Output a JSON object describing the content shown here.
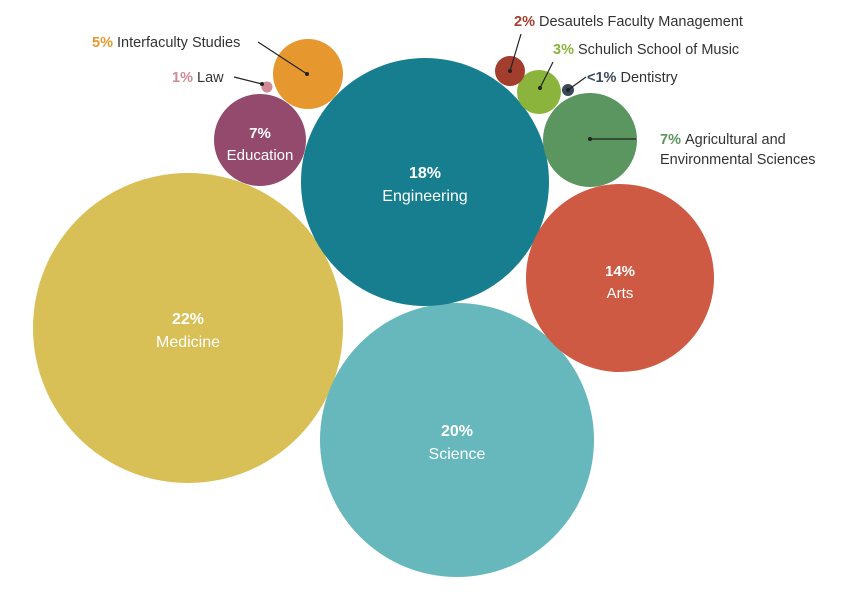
{
  "chart_data": {
    "type": "bubble",
    "title": "",
    "unit": "%",
    "series": [
      {
        "name": "Medicine",
        "percent_label": "22%",
        "value": 22,
        "color": "#d8bf56",
        "label_position": "inside"
      },
      {
        "name": "Science",
        "percent_label": "20%",
        "value": 20,
        "color": "#67b8bd",
        "label_position": "inside"
      },
      {
        "name": "Engineering",
        "percent_label": "18%",
        "value": 18,
        "color": "#177e8f",
        "label_position": "inside"
      },
      {
        "name": "Arts",
        "percent_label": "14%",
        "value": 14,
        "color": "#cf5a44",
        "label_position": "inside"
      },
      {
        "name": "Education",
        "percent_label": "7%",
        "value": 7,
        "color": "#934a6d",
        "label_position": "inside"
      },
      {
        "name": "Agricultural and Environmental Sciences",
        "name_lines": [
          "Agricultural and",
          "Environmental Sciences"
        ],
        "percent_label": "7%",
        "value": 7,
        "color": "#5b955f",
        "label_position": "right"
      },
      {
        "name": "Interfaculty Studies",
        "percent_label": "5%",
        "value": 5,
        "color": "#e6982f",
        "label_position": "upper-left"
      },
      {
        "name": "Schulich School of Music",
        "percent_label": "3%",
        "value": 3,
        "color": "#8ab43c",
        "label_position": "upper-right"
      },
      {
        "name": "Desautels Faculty Management",
        "percent_label": "2%",
        "value": 2,
        "color": "#a33d2d",
        "label_position": "upper-right"
      },
      {
        "name": "Law",
        "percent_label": "1%",
        "value": 1,
        "color": "#cf8a93",
        "label_position": "left"
      },
      {
        "name": "Dentistry",
        "percent_label": "<1%",
        "value": 0.5,
        "color": "#3b4a5a",
        "label_position": "right"
      }
    ]
  }
}
